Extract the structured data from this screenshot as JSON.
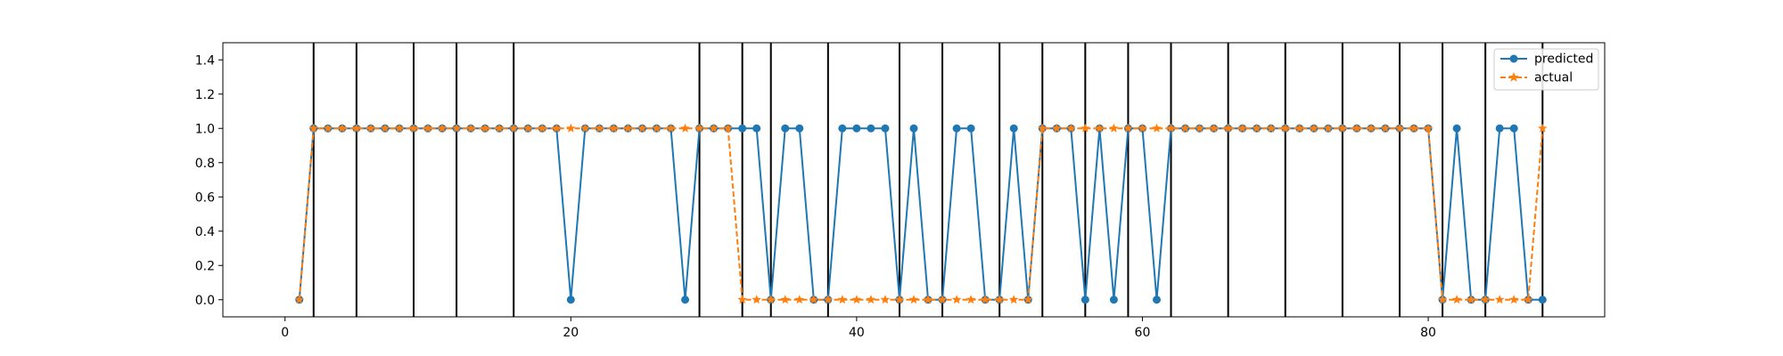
{
  "chart_data": {
    "type": "line",
    "x_range": [
      -4.35,
      92.35
    ],
    "y_range": [
      -0.1,
      1.5
    ],
    "x_ticks": [
      0,
      20,
      40,
      60,
      80
    ],
    "y_ticks": [
      0.0,
      0.2,
      0.4,
      0.6,
      0.8,
      1.0,
      1.2,
      1.4
    ],
    "x_tick_labels": [
      "0",
      "20",
      "40",
      "60",
      "80"
    ],
    "y_tick_labels": [
      "0.0",
      "0.2",
      "0.4",
      "0.6",
      "0.8",
      "1.0",
      "1.2",
      "1.4"
    ],
    "grid": false,
    "legend_position": "top-right",
    "vertical_lines": [
      2,
      5,
      9,
      12,
      16,
      29,
      32,
      34,
      38,
      43,
      46,
      50,
      53,
      56,
      59,
      62,
      66,
      70,
      74,
      78,
      81,
      84,
      88
    ],
    "x": [
      1,
      2,
      3,
      4,
      5,
      6,
      7,
      8,
      9,
      10,
      11,
      12,
      13,
      14,
      15,
      16,
      17,
      18,
      19,
      20,
      21,
      22,
      23,
      24,
      25,
      26,
      27,
      28,
      29,
      30,
      31,
      32,
      33,
      34,
      35,
      36,
      37,
      38,
      39,
      40,
      41,
      42,
      43,
      44,
      45,
      46,
      47,
      48,
      49,
      50,
      51,
      52,
      53,
      54,
      55,
      56,
      57,
      58,
      59,
      60,
      61,
      62,
      63,
      64,
      65,
      66,
      67,
      68,
      69,
      70,
      71,
      72,
      73,
      74,
      75,
      76,
      77,
      78,
      79,
      80,
      81,
      82,
      83,
      84,
      85,
      86,
      87,
      88
    ],
    "series": [
      {
        "name": "predicted",
        "color": "#1f77b4",
        "line_style": "solid",
        "marker": "circle",
        "values": [
          0,
          1,
          1,
          1,
          1,
          1,
          1,
          1,
          1,
          1,
          1,
          1,
          1,
          1,
          1,
          1,
          1,
          1,
          1,
          0,
          1,
          1,
          1,
          1,
          1,
          1,
          1,
          0,
          1,
          1,
          1,
          1,
          1,
          0,
          1,
          1,
          0,
          0,
          1,
          1,
          1,
          1,
          0,
          1,
          0,
          0,
          1,
          1,
          0,
          0,
          1,
          0,
          1,
          1,
          1,
          0,
          1,
          0,
          1,
          1,
          0,
          1,
          1,
          1,
          1,
          1,
          1,
          1,
          1,
          1,
          1,
          1,
          1,
          1,
          1,
          1,
          1,
          1,
          1,
          1,
          0,
          1,
          0,
          0,
          1,
          1,
          0,
          0
        ]
      },
      {
        "name": "actual",
        "color": "#ff7f0e",
        "line_style": "dashed",
        "marker": "star",
        "values": [
          0,
          1,
          1,
          1,
          1,
          1,
          1,
          1,
          1,
          1,
          1,
          1,
          1,
          1,
          1,
          1,
          1,
          1,
          1,
          1,
          1,
          1,
          1,
          1,
          1,
          1,
          1,
          1,
          1,
          1,
          1,
          0,
          0,
          0,
          0,
          0,
          0,
          0,
          0,
          0,
          0,
          0,
          0,
          0,
          0,
          0,
          0,
          0,
          0,
          0,
          0,
          0,
          1,
          1,
          1,
          1,
          1,
          1,
          1,
          1,
          1,
          1,
          1,
          1,
          1,
          1,
          1,
          1,
          1,
          1,
          1,
          1,
          1,
          1,
          1,
          1,
          1,
          1,
          1,
          1,
          0,
          0,
          0,
          0,
          0,
          0,
          0,
          1
        ]
      }
    ]
  }
}
